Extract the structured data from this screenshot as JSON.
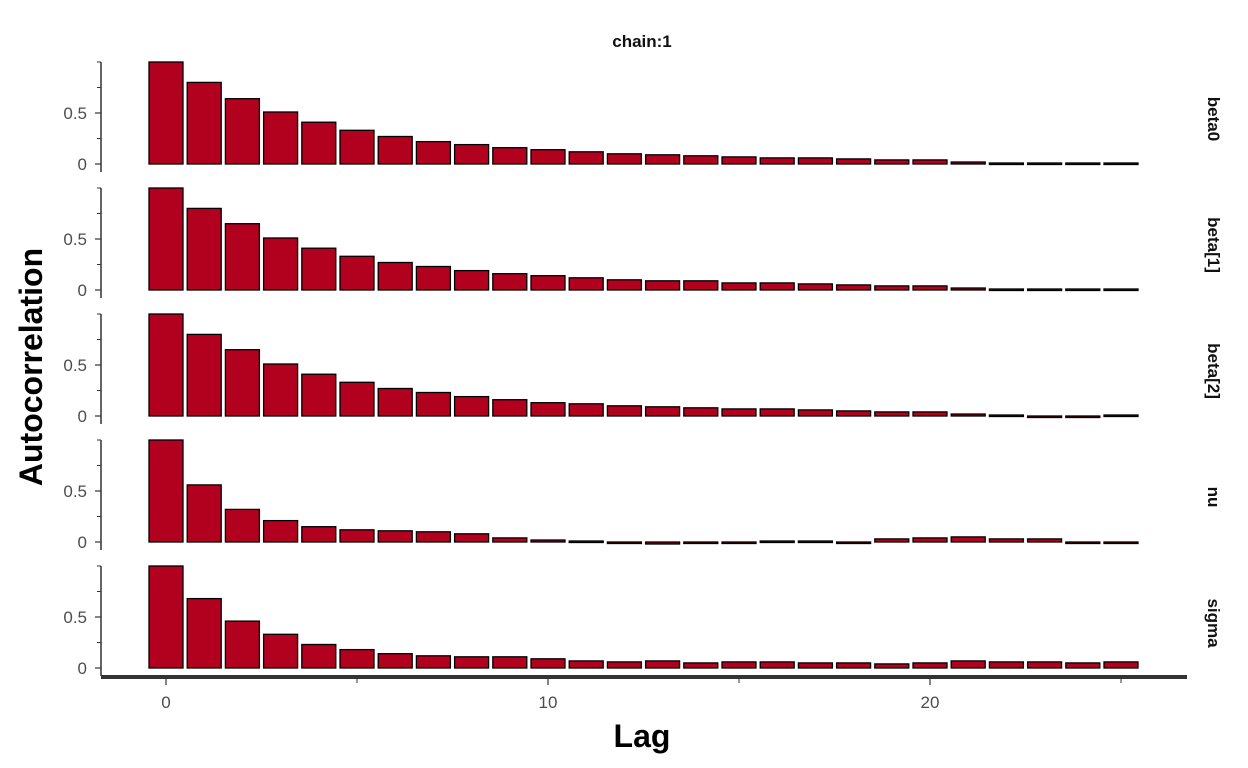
{
  "chart_data": {
    "type": "bar",
    "title": "chain:1",
    "xlabel": "Lag",
    "ylabel": "Autocorrelation",
    "x": [
      0,
      1,
      2,
      3,
      4,
      5,
      6,
      7,
      8,
      9,
      10,
      11,
      12,
      13,
      14,
      15,
      16,
      17,
      18,
      19,
      20,
      21,
      22,
      23,
      24,
      25
    ],
    "x_ticks": [
      0,
      10,
      20
    ],
    "x_tick_labels": [
      "0",
      "10",
      "20"
    ],
    "xlim": [
      -0.6,
      25.6
    ],
    "ylim": [
      0,
      1.0
    ],
    "y_ticks": [
      0,
      0.5
    ],
    "y_tick_labels": [
      "0",
      "0.5"
    ],
    "bar_color": "#B2001F",
    "bar_edge_color": "#000000",
    "grid": false,
    "facets": [
      {
        "name": "beta0",
        "values": [
          1.0,
          0.8,
          0.64,
          0.51,
          0.41,
          0.33,
          0.27,
          0.22,
          0.19,
          0.16,
          0.14,
          0.12,
          0.1,
          0.09,
          0.08,
          0.07,
          0.06,
          0.06,
          0.05,
          0.04,
          0.04,
          0.02,
          0.01,
          0.01,
          0.01,
          0.01
        ]
      },
      {
        "name": "beta[1]",
        "values": [
          1.0,
          0.8,
          0.65,
          0.51,
          0.41,
          0.33,
          0.27,
          0.23,
          0.19,
          0.16,
          0.14,
          0.12,
          0.1,
          0.09,
          0.09,
          0.07,
          0.07,
          0.06,
          0.05,
          0.04,
          0.04,
          0.02,
          0.01,
          0.01,
          0.01,
          0.01
        ]
      },
      {
        "name": "beta[2]",
        "values": [
          1.0,
          0.8,
          0.65,
          0.51,
          0.41,
          0.33,
          0.27,
          0.23,
          0.19,
          0.16,
          0.13,
          0.12,
          0.1,
          0.09,
          0.08,
          0.07,
          0.07,
          0.06,
          0.05,
          0.04,
          0.04,
          0.02,
          0.01,
          0.0,
          0.0,
          0.01
        ]
      },
      {
        "name": "nu",
        "values": [
          1.0,
          0.56,
          0.32,
          0.21,
          0.15,
          0.12,
          0.11,
          0.1,
          0.08,
          0.04,
          0.02,
          0.01,
          -0.01,
          -0.02,
          -0.01,
          0.0,
          0.01,
          0.01,
          0.0,
          0.03,
          0.04,
          0.05,
          0.03,
          0.03,
          0.0,
          -0.01
        ]
      },
      {
        "name": "sigma",
        "values": [
          1.0,
          0.68,
          0.46,
          0.33,
          0.23,
          0.18,
          0.14,
          0.12,
          0.11,
          0.11,
          0.09,
          0.07,
          0.06,
          0.07,
          0.05,
          0.06,
          0.06,
          0.05,
          0.05,
          0.04,
          0.05,
          0.07,
          0.06,
          0.06,
          0.05,
          0.06
        ]
      }
    ]
  }
}
